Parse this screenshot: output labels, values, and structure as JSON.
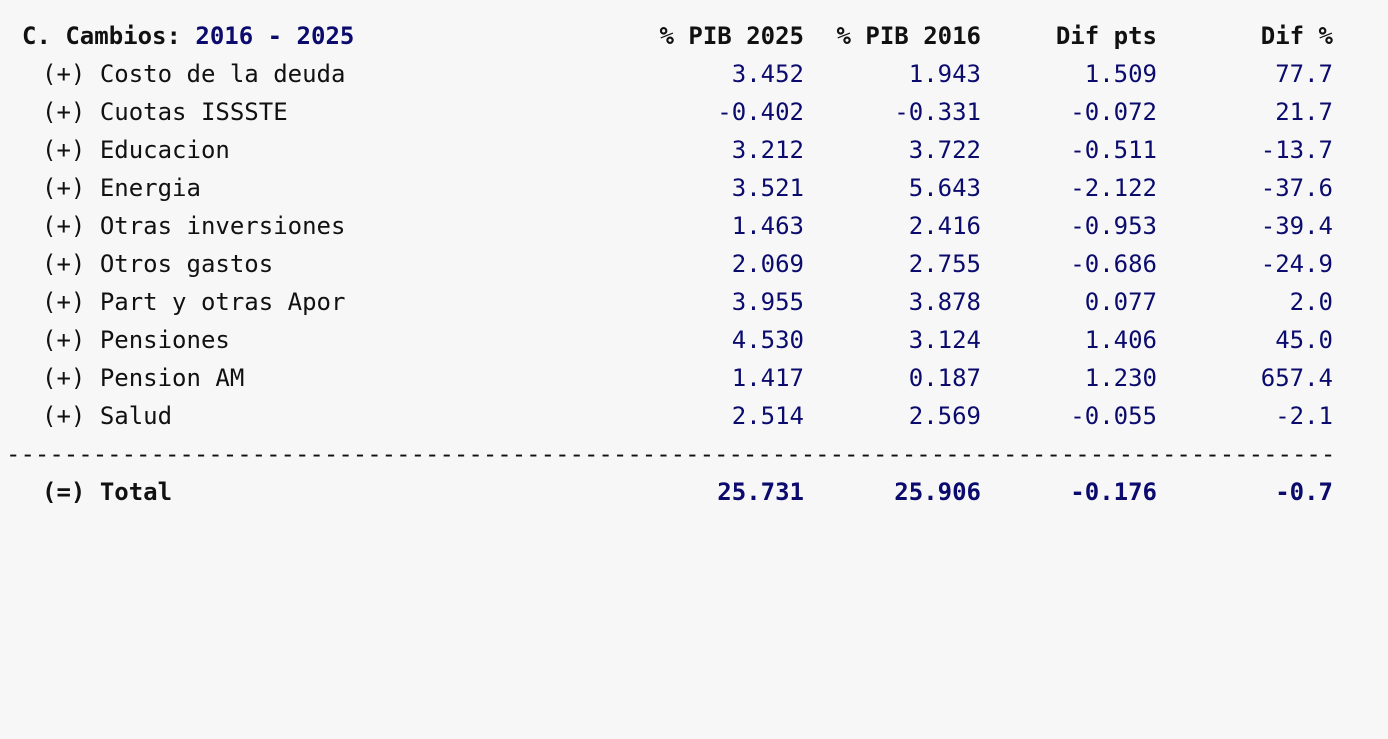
{
  "header": {
    "title_prefix": "C. Cambios:",
    "year_range": "2016 - 2025",
    "col1": "% PIB 2025",
    "col2": "% PIB 2016",
    "col3": "Dif pts",
    "col4": "Dif %"
  },
  "rows": [
    {
      "prefix": "(+)",
      "label": "Costo de la deuda",
      "v1": "3.452",
      "v2": "1.943",
      "v3": "1.509",
      "v4": "77.7"
    },
    {
      "prefix": "(+)",
      "label": "Cuotas ISSSTE",
      "v1": "-0.402",
      "v2": "-0.331",
      "v3": "-0.072",
      "v4": "21.7"
    },
    {
      "prefix": "(+)",
      "label": "Educacion",
      "v1": "3.212",
      "v2": "3.722",
      "v3": "-0.511",
      "v4": "-13.7"
    },
    {
      "prefix": "(+)",
      "label": "Energia",
      "v1": "3.521",
      "v2": "5.643",
      "v3": "-2.122",
      "v4": "-37.6"
    },
    {
      "prefix": "(+)",
      "label": "Otras inversiones",
      "v1": "1.463",
      "v2": "2.416",
      "v3": "-0.953",
      "v4": "-39.4"
    },
    {
      "prefix": "(+)",
      "label": "Otros gastos",
      "v1": "2.069",
      "v2": "2.755",
      "v3": "-0.686",
      "v4": "-24.9"
    },
    {
      "prefix": "(+)",
      "label": "Part y otras Apor",
      "v1": "3.955",
      "v2": "3.878",
      "v3": "0.077",
      "v4": "2.0"
    },
    {
      "prefix": "(+)",
      "label": "Pensiones",
      "v1": "4.530",
      "v2": "3.124",
      "v3": "1.406",
      "v4": "45.0"
    },
    {
      "prefix": "(+)",
      "label": "Pension AM",
      "v1": "1.417",
      "v2": "0.187",
      "v3": "1.230",
      "v4": "657.4"
    },
    {
      "prefix": "(+)",
      "label": "Salud",
      "v1": "2.514",
      "v2": "2.569",
      "v3": "-0.055",
      "v4": "-2.1"
    }
  ],
  "separator": "-----------------------------------------------------------------------------------------------------------------------------------------",
  "total": {
    "prefix": "(=)",
    "label": "Total",
    "v1": "25.731",
    "v2": "25.906",
    "v3": "-0.176",
    "v4": "-0.7"
  }
}
